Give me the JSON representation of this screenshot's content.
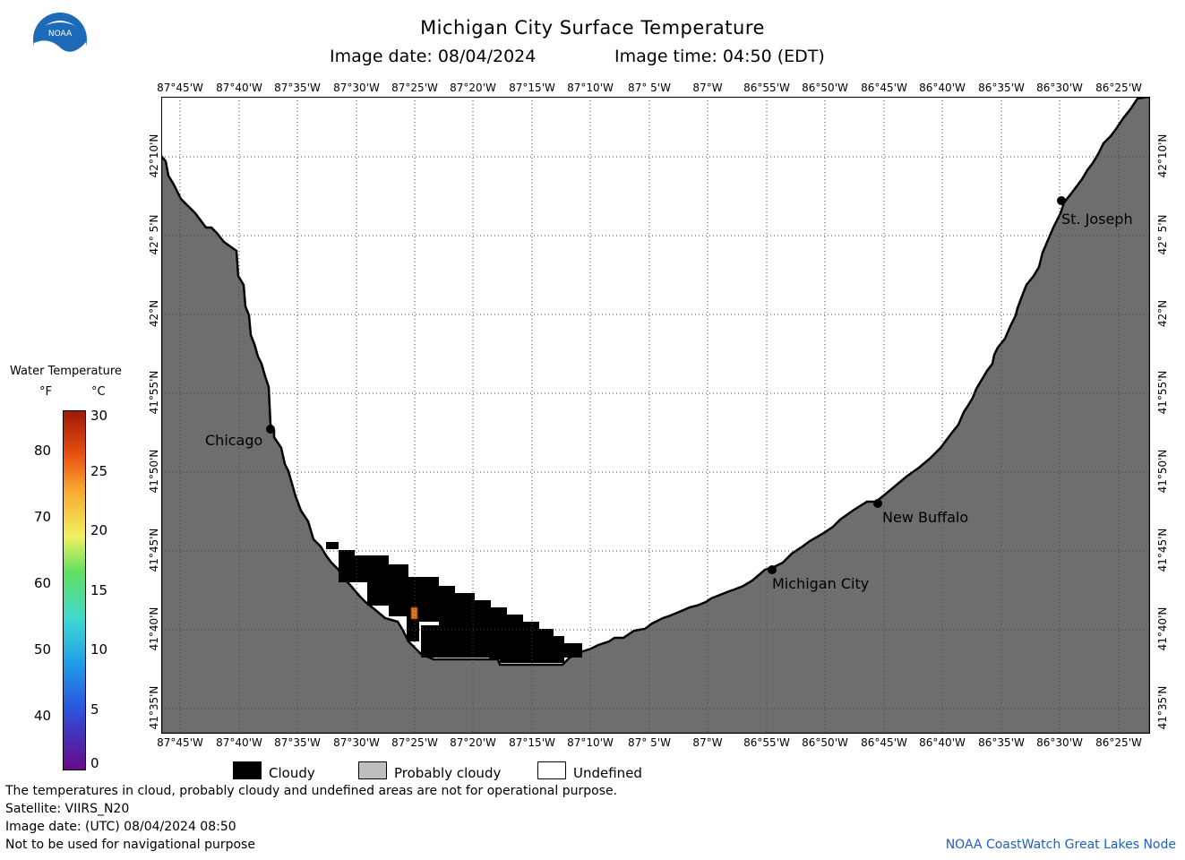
{
  "header": {
    "title": "Michigan City Surface Temperature",
    "image_date": "Image date: 08/04/2024",
    "image_time": "Image time: 04:50 (EDT)"
  },
  "logo": {
    "text": "NOAA",
    "icon": "noaa-logo-icon"
  },
  "map": {
    "lon_labels": [
      "87°45'W",
      "87°40'W",
      "87°35'W",
      "87°30'W",
      "87°25'W",
      "87°20'W",
      "87°15'W",
      "87°10'W",
      "87° 5'W",
      "87°W",
      "86°55'W",
      "86°50'W",
      "86°45'W",
      "86°40'W",
      "86°35'W",
      "86°30'W",
      "86°25'W"
    ],
    "lat_labels": [
      "42°10'N",
      "42° 5'N",
      "42°N",
      "41°55'N",
      "41°50'N",
      "41°45'N",
      "41°40'N",
      "41°35'N"
    ],
    "cities": [
      "Chicago",
      "Michigan City",
      "New Buffalo",
      "St. Joseph"
    ],
    "colors": {
      "land": "#6e6e6e",
      "water": "#ffffff",
      "cloud": "#000000",
      "grid": "#555555"
    }
  },
  "scale": {
    "title": "Water Temperature",
    "unit_f": "°F",
    "unit_c": "°C",
    "f_ticks": [
      "80",
      "70",
      "60",
      "50",
      "40"
    ],
    "c_ticks": [
      "30",
      "25",
      "20",
      "15",
      "10",
      "5",
      "0"
    ]
  },
  "legend": {
    "cloudy": "Cloudy",
    "probably_cloudy": "Probably cloudy",
    "undefined": "Undefined"
  },
  "footer": {
    "note": "The temperatures in cloud, probably cloudy and undefined areas are not for operational purpose.",
    "satellite": "Satellite: VIIRS_N20",
    "utc_date": "Image date: (UTC) 08/04/2024  08:50",
    "nav_warning": "Not to be used for navigational purpose",
    "credit": "NOAA CoastWatch Great Lakes Node"
  }
}
